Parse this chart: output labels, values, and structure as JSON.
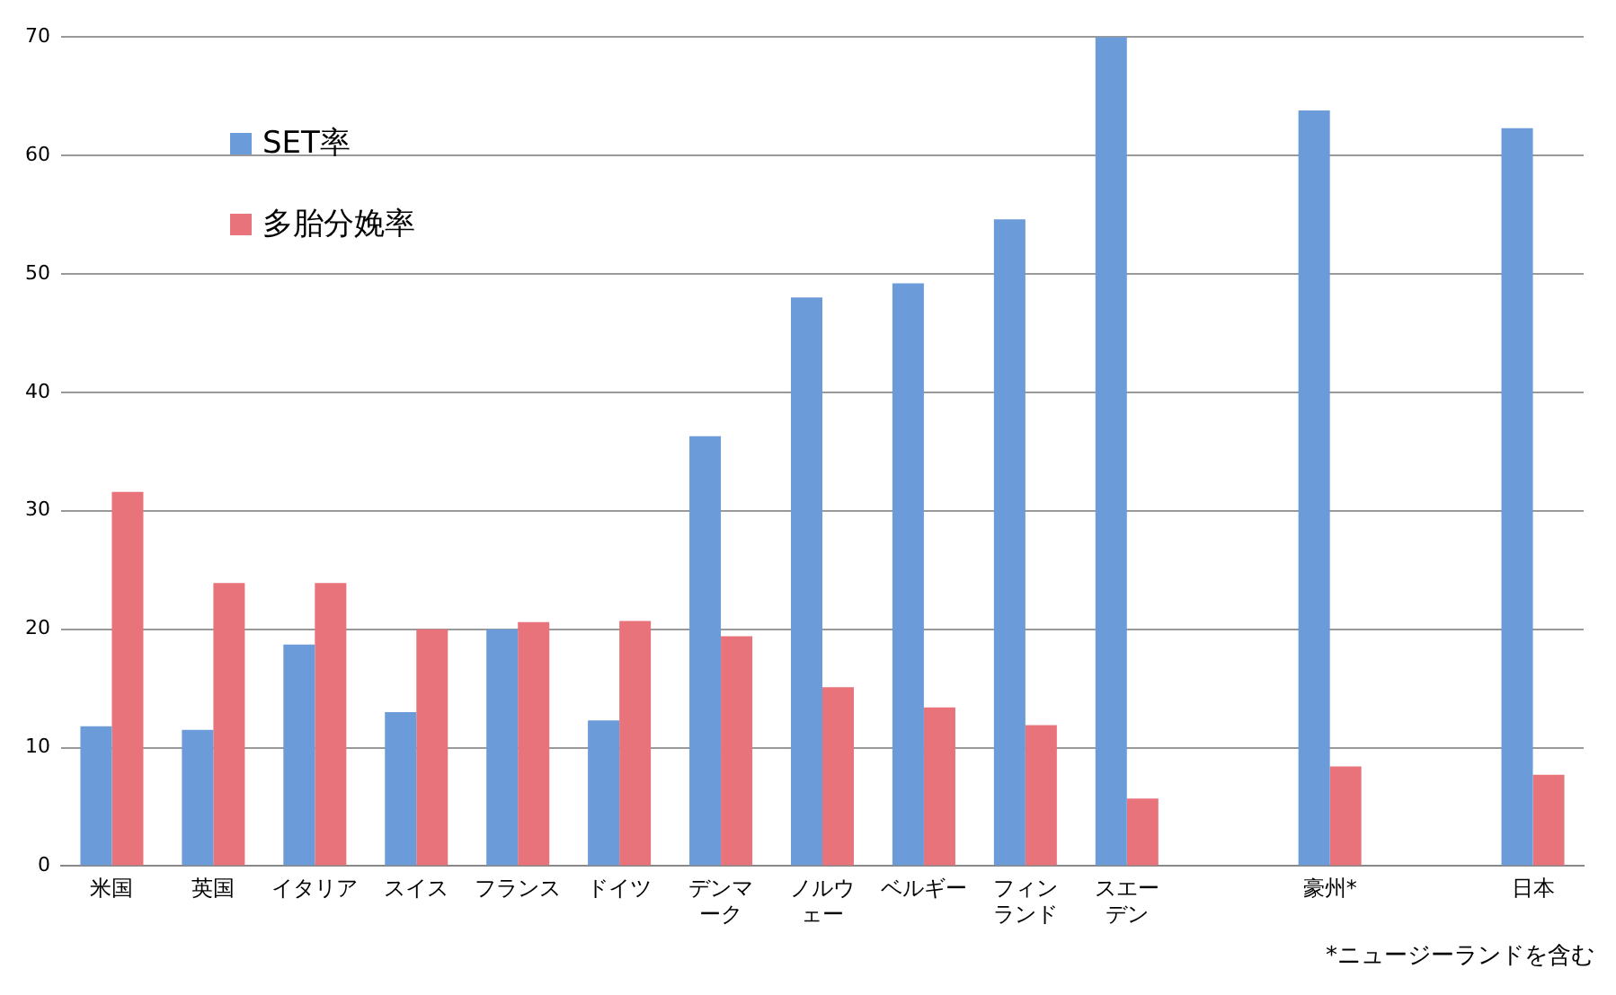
{
  "chart_data": {
    "type": "bar",
    "categories": [
      "米国",
      "英国",
      "イタリア",
      "スイス",
      "フランス",
      "ドイツ",
      "デンマーク",
      "ノルウェー",
      "ベルギー",
      "フィンランド",
      "スエーデン",
      null,
      "豪州*",
      null,
      "日本"
    ],
    "series": [
      {
        "name": "SET率",
        "color": "#6b9bd8",
        "values": [
          11.8,
          11.5,
          18.7,
          13,
          20,
          12.3,
          36.3,
          48,
          49.2,
          54.6,
          70,
          null,
          63.8,
          null,
          62.3
        ]
      },
      {
        "name": "多胎分娩率",
        "color": "#e8737a",
        "values": [
          31.6,
          23.9,
          23.9,
          20,
          20.6,
          20.7,
          19.4,
          15.1,
          13.4,
          11.9,
          5.7,
          null,
          8.4,
          null,
          7.7
        ]
      }
    ],
    "ylim": [
      0,
      70
    ],
    "yticks": [
      0,
      10,
      20,
      30,
      40,
      50,
      60,
      70
    ],
    "grid": "y",
    "legend": "top left",
    "annotations": [
      "*ニュージーランドを含む"
    ]
  }
}
